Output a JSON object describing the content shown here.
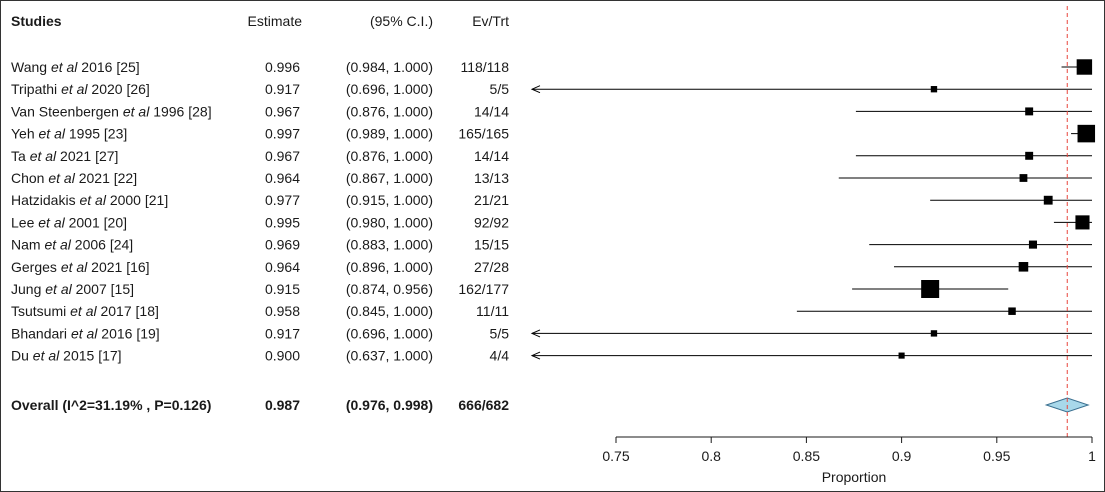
{
  "chart_data": {
    "type": "forest",
    "columns": {
      "study": "Studies",
      "estimate": "Estimate",
      "ci": "(95% C.I.)",
      "events": "Ev/Trt"
    },
    "studies": [
      {
        "author": "Wang",
        "etal": "et al",
        "rest": " 2016 [25]",
        "estimate": 0.996,
        "estimate_text": "0.996",
        "lower": 0.984,
        "upper": 1.0,
        "ci_text": "(0.984, 1.000)",
        "events": "118/118",
        "weight": 118
      },
      {
        "author": "Tripathi",
        "etal": "et al",
        "rest": " 2020 [26]",
        "estimate": 0.917,
        "estimate_text": "0.917",
        "lower": 0.696,
        "upper": 1.0,
        "ci_text": "(0.696, 1.000)",
        "events": "5/5",
        "weight": 5
      },
      {
        "author": "Van Steenbergen",
        "etal": "et al",
        "rest": " 1996 [28]",
        "estimate": 0.967,
        "estimate_text": "0.967",
        "lower": 0.876,
        "upper": 1.0,
        "ci_text": "(0.876, 1.000)",
        "events": "14/14",
        "weight": 14
      },
      {
        "author": "Yeh",
        "etal": "et al",
        "rest": " 1995 [23]",
        "estimate": 0.997,
        "estimate_text": "0.997",
        "lower": 0.989,
        "upper": 1.0,
        "ci_text": "(0.989, 1.000)",
        "events": "165/165",
        "weight": 165
      },
      {
        "author": "Ta",
        "etal": "et al",
        "rest": " 2021 [27]",
        "estimate": 0.967,
        "estimate_text": "0.967",
        "lower": 0.876,
        "upper": 1.0,
        "ci_text": "(0.876, 1.000)",
        "events": "14/14",
        "weight": 14
      },
      {
        "author": "Chon",
        "etal": "et al",
        "rest": " 2021 [22]",
        "estimate": 0.964,
        "estimate_text": "0.964",
        "lower": 0.867,
        "upper": 1.0,
        "ci_text": "(0.867, 1.000)",
        "events": "13/13",
        "weight": 13
      },
      {
        "author": "Hatzidakis",
        "etal": "et al",
        "rest": " 2000 [21]",
        "estimate": 0.977,
        "estimate_text": "0.977",
        "lower": 0.915,
        "upper": 1.0,
        "ci_text": "(0.915, 1.000)",
        "events": "21/21",
        "weight": 21
      },
      {
        "author": "Lee",
        "etal": "et al",
        "rest": " 2001 [20]",
        "estimate": 0.995,
        "estimate_text": "0.995",
        "lower": 0.98,
        "upper": 1.0,
        "ci_text": "(0.980, 1.000)",
        "events": "92/92",
        "weight": 92
      },
      {
        "author": "Nam",
        "etal": "et al",
        "rest": " 2006 [24]",
        "estimate": 0.969,
        "estimate_text": "0.969",
        "lower": 0.883,
        "upper": 1.0,
        "ci_text": "(0.883, 1.000)",
        "events": "15/15",
        "weight": 15
      },
      {
        "author": "Gerges",
        "etal": "et al",
        "rest": " 2021 [16]",
        "estimate": 0.964,
        "estimate_text": "0.964",
        "lower": 0.896,
        "upper": 1.0,
        "ci_text": "(0.896, 1.000)",
        "events": "27/28",
        "weight": 28
      },
      {
        "author": "Jung",
        "etal": "et al",
        "rest": " 2007 [15]",
        "estimate": 0.915,
        "estimate_text": "0.915",
        "lower": 0.874,
        "upper": 0.956,
        "ci_text": "(0.874, 0.956)",
        "events": "162/177",
        "weight": 177
      },
      {
        "author": "Tsutsumi",
        "etal": "et al",
        "rest": " 2017 [18]",
        "estimate": 0.958,
        "estimate_text": "0.958",
        "lower": 0.845,
        "upper": 1.0,
        "ci_text": "(0.845, 1.000)",
        "events": "11/11",
        "weight": 11
      },
      {
        "author": "Bhandari",
        "etal": "et al",
        "rest": " 2016 [19]",
        "estimate": 0.917,
        "estimate_text": "0.917",
        "lower": 0.696,
        "upper": 1.0,
        "ci_text": "(0.696, 1.000)",
        "events": "5/5",
        "weight": 5
      },
      {
        "author": "Du",
        "etal": "et al",
        "rest": " 2015 [17]",
        "estimate": 0.9,
        "estimate_text": "0.900",
        "lower": 0.637,
        "upper": 1.0,
        "ci_text": "(0.637, 1.000)",
        "events": "4/4",
        "weight": 4
      }
    ],
    "overall": {
      "label": "Overall (I^2=31.19% , P=0.126)",
      "estimate": 0.987,
      "estimate_text": "0.987",
      "lower": 0.976,
      "upper": 0.998,
      "ci_text": "(0.976, 0.998)",
      "events": "666/682"
    },
    "x_axis": {
      "label": "Proportion",
      "ticks": [
        0.75,
        0.8,
        0.85,
        0.9,
        0.95,
        1
      ],
      "tick_labels": [
        "0.75",
        "0.8",
        "0.85",
        "0.9",
        "0.95",
        "1"
      ],
      "display_min": 0.75,
      "display_max": 1.0
    },
    "reference_line": {
      "value": 0.987,
      "style": "dashed",
      "color": "#e8453c"
    },
    "colors": {
      "box": "#000000",
      "ci_line": "#000000",
      "diamond_fill": "#a8d8ea",
      "diamond_stroke": "#3a6f8f"
    }
  }
}
